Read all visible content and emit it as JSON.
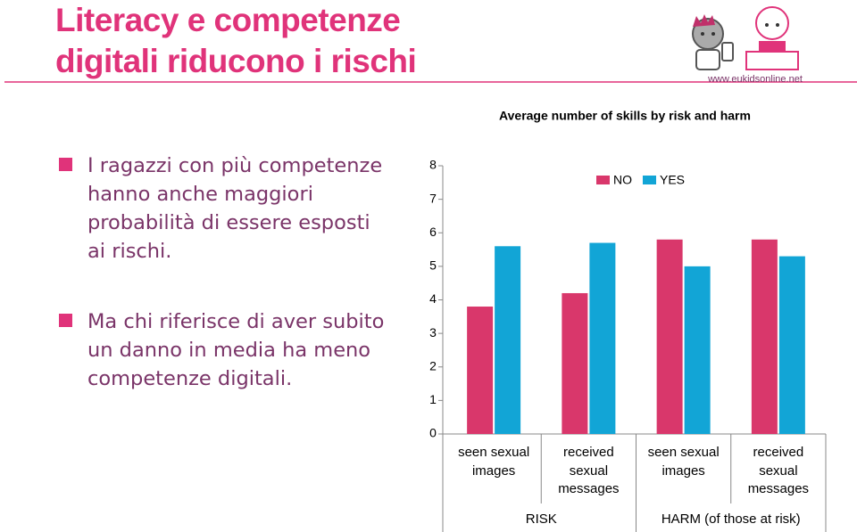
{
  "header": {
    "title_lines": [
      "Literacy e competenze",
      "digitali riducono i rischi"
    ],
    "logo_url": "www.eukidsonline.net"
  },
  "bullets": [
    "I ragazzi con più competenze hanno anche maggiori probabilità di essere esposti ai rischi.",
    "Ma chi riferisce di aver subito un danno in media ha meno competenze digitali."
  ],
  "chart_data": {
    "type": "bar",
    "title": "Average number of skills by risk and harm",
    "categories": [
      "seen sexual images",
      "received sexual messages",
      "seen sexual images",
      "received sexual messages"
    ],
    "groups": [
      "RISK",
      "HARM (of those at risk)"
    ],
    "series": [
      {
        "name": "NO",
        "color": "#d9376b",
        "values": [
          3.8,
          4.2,
          5.8,
          5.8
        ]
      },
      {
        "name": "YES",
        "color": "#12a5d6",
        "values": [
          5.6,
          5.7,
          5.0,
          5.3
        ]
      }
    ],
    "ylim": [
      0,
      8
    ],
    "yticks": [
      0,
      1,
      2,
      3,
      4,
      5,
      6,
      7,
      8
    ],
    "grid": false,
    "legend": "top"
  }
}
